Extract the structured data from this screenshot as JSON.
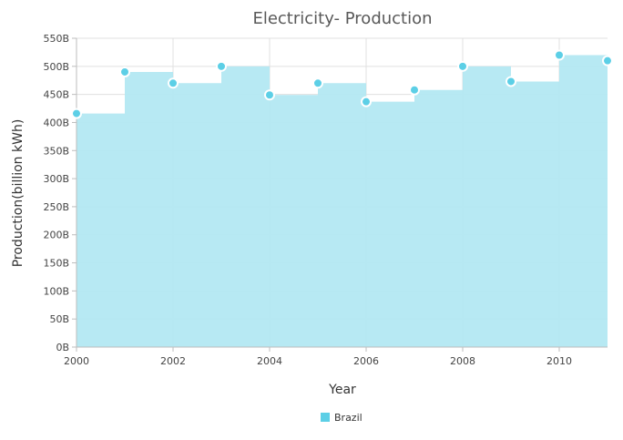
{
  "chart_data": {
    "type": "area",
    "subtype": "step-area",
    "title": "Electricity- Production",
    "xlabel": "Year",
    "ylabel": "Production(billion kWh)",
    "x_ticks": [
      "2000",
      "2002",
      "2004",
      "2006",
      "2008",
      "2010"
    ],
    "y_ticks": [
      "0B",
      "50B",
      "100B",
      "150B",
      "200B",
      "250B",
      "300B",
      "350B",
      "400B",
      "450B",
      "500B",
      "550B"
    ],
    "xlim": [
      2000,
      2011
    ],
    "ylim": [
      0,
      550
    ],
    "grid": true,
    "legend_position": "bottom",
    "series": [
      {
        "name": "Brazil",
        "color": "#b3e8f2",
        "marker_color": "#5ccfe6",
        "x": [
          2000,
          2001,
          2002,
          2003,
          2004,
          2005,
          2006,
          2007,
          2008,
          2009,
          2010,
          2011
        ],
        "values": [
          416,
          490,
          470,
          500,
          449,
          470,
          437,
          458,
          500,
          473,
          520,
          510
        ]
      }
    ]
  }
}
